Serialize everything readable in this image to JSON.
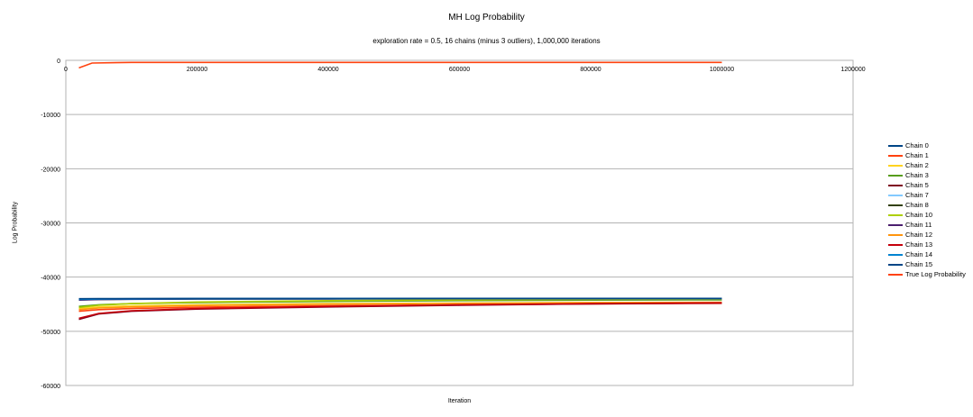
{
  "chart_data": {
    "type": "line",
    "title": "MH Log Probability",
    "subtitle": "exploration rate = 0.5, 16 chains (minus 3 outliers), 1,000,000 iterations",
    "xlabel": "Iteration",
    "ylabel": "Log Probability",
    "xlim": [
      0,
      1200000
    ],
    "ylim": [
      -60000,
      0
    ],
    "x_ticks": [
      0,
      200000,
      400000,
      600000,
      800000,
      1000000,
      1200000
    ],
    "y_ticks": [
      0,
      -10000,
      -20000,
      -30000,
      -40000,
      -50000,
      -60000
    ],
    "grid": "horizontal",
    "legend_position": "right",
    "series": [
      {
        "name": "Chain 0",
        "color": "#004586",
        "x": [
          20000,
          50000,
          100000,
          200000,
          400000,
          600000,
          800000,
          1000000
        ],
        "y": [
          -44100,
          -44050,
          -44000,
          -43980,
          -43960,
          -43950,
          -43940,
          -43930
        ]
      },
      {
        "name": "Chain 1",
        "color": "#ff420e",
        "x": [
          20000,
          50000,
          100000,
          200000,
          400000,
          600000,
          800000,
          1000000
        ],
        "y": [
          -46300,
          -46000,
          -45800,
          -45550,
          -45300,
          -45100,
          -44950,
          -44850
        ]
      },
      {
        "name": "Chain 2",
        "color": "#ffd320",
        "x": [
          20000,
          50000,
          100000,
          200000,
          400000,
          600000,
          800000,
          1000000
        ],
        "y": [
          -45800,
          -45500,
          -45300,
          -45100,
          -44900,
          -44800,
          -44700,
          -44650
        ]
      },
      {
        "name": "Chain 3",
        "color": "#579d1c",
        "x": [
          20000,
          50000,
          100000,
          200000,
          400000,
          600000,
          800000,
          1000000
        ],
        "y": [
          -45400,
          -45100,
          -44900,
          -44700,
          -44500,
          -44350,
          -44250,
          -44200
        ]
      },
      {
        "name": "Chain 5",
        "color": "#7e0021",
        "x": [
          20000,
          50000,
          100000,
          200000,
          400000,
          600000,
          800000,
          1000000
        ],
        "y": [
          -47800,
          -46800,
          -46300,
          -45900,
          -45500,
          -45200,
          -44950,
          -44800
        ]
      },
      {
        "name": "Chain 7",
        "color": "#83caff",
        "x": [
          20000,
          50000,
          100000,
          200000,
          400000,
          600000,
          800000,
          1000000
        ],
        "y": [
          -44150,
          -44080,
          -44040,
          -44000,
          -43980,
          -43960,
          -43950,
          -43940
        ]
      },
      {
        "name": "Chain 8",
        "color": "#314004",
        "x": [
          20000,
          50000,
          100000,
          200000,
          400000,
          600000,
          800000,
          1000000
        ],
        "y": [
          -44200,
          -44120,
          -44080,
          -44040,
          -44010,
          -43990,
          -43970,
          -43960
        ]
      },
      {
        "name": "Chain 10",
        "color": "#aecf00",
        "x": [
          20000,
          50000,
          100000,
          200000,
          400000,
          600000,
          800000,
          1000000
        ],
        "y": [
          -45600,
          -45200,
          -44900,
          -44600,
          -44350,
          -44200,
          -44100,
          -44050
        ]
      },
      {
        "name": "Chain 11",
        "color": "#4b1f6f",
        "x": [
          20000,
          50000,
          100000,
          200000,
          400000,
          600000,
          800000,
          1000000
        ],
        "y": [
          -44250,
          -44150,
          -44100,
          -44050,
          -44020,
          -44000,
          -43990,
          -43980
        ]
      },
      {
        "name": "Chain 12",
        "color": "#ff950e",
        "x": [
          20000,
          50000,
          100000,
          200000,
          400000,
          600000,
          800000,
          1000000
        ],
        "y": [
          -46000,
          -45700,
          -45500,
          -45250,
          -45000,
          -44850,
          -44750,
          -44700
        ]
      },
      {
        "name": "Chain 13",
        "color": "#c5000b",
        "x": [
          20000,
          50000,
          100000,
          200000,
          400000,
          600000,
          800000,
          1000000
        ],
        "y": [
          -47600,
          -46700,
          -46200,
          -45800,
          -45400,
          -45100,
          -44900,
          -44750
        ]
      },
      {
        "name": "Chain 14",
        "color": "#0084d1",
        "x": [
          20000,
          50000,
          100000,
          200000,
          400000,
          600000,
          800000,
          1000000
        ],
        "y": [
          -44120,
          -44060,
          -44020,
          -43990,
          -43970,
          -43960,
          -43950,
          -43940
        ]
      },
      {
        "name": "Chain 15",
        "color": "#004586",
        "x": [
          20000,
          50000,
          100000,
          200000,
          400000,
          600000,
          800000,
          1000000
        ],
        "y": [
          -44000,
          -43980,
          -43960,
          -43950,
          -43940,
          -43935,
          -43930,
          -43925
        ]
      },
      {
        "name": "True Log Probability",
        "color": "#ff420e",
        "x": [
          20000,
          40000,
          100000,
          1000000
        ],
        "y": [
          -1400,
          -500,
          -380,
          -380
        ]
      }
    ]
  }
}
